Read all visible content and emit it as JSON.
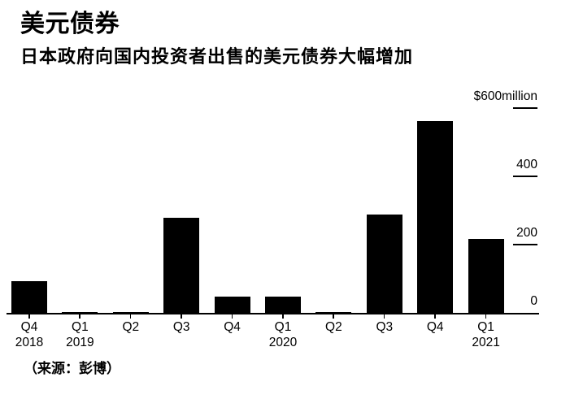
{
  "header": {
    "title": "美元债券",
    "subtitle": "日本政府向国内投资者出售的美元债券大幅增加"
  },
  "chart_data": {
    "type": "bar",
    "title": "美元债券",
    "subtitle": "日本政府向国内投资者出售的美元债券大幅增加",
    "unit": "$ million",
    "categories": [
      {
        "quarter": "Q4",
        "year": "2018"
      },
      {
        "quarter": "Q1",
        "year": "2019"
      },
      {
        "quarter": "Q2",
        "year": ""
      },
      {
        "quarter": "Q3",
        "year": ""
      },
      {
        "quarter": "Q4",
        "year": ""
      },
      {
        "quarter": "Q1",
        "year": "2020"
      },
      {
        "quarter": "Q2",
        "year": ""
      },
      {
        "quarter": "Q3",
        "year": ""
      },
      {
        "quarter": "Q4",
        "year": ""
      },
      {
        "quarter": "Q1",
        "year": "2021"
      }
    ],
    "values": [
      95,
      5,
      5,
      280,
      50,
      50,
      5,
      290,
      565,
      220
    ],
    "y_axis": {
      "side": "right",
      "ylim": [
        0,
        600
      ],
      "ticks": [
        {
          "value": 0,
          "label": "0"
        },
        {
          "value": 200,
          "label": "200"
        },
        {
          "value": 400,
          "label": "400"
        },
        {
          "value": 600,
          "label": "$600million"
        }
      ]
    },
    "bar_color": "#000000",
    "background_color": "#ffffff",
    "grid": "off",
    "legend": "none"
  },
  "footer": {
    "source": "（来源：彭博）"
  }
}
